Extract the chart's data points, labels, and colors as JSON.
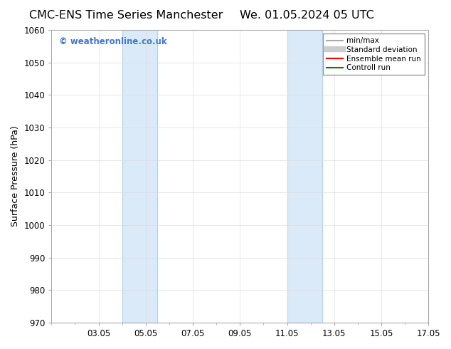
{
  "title_left": "CMC-ENS Time Series Manchester",
  "title_right": "We. 01.05.2024 05 UTC",
  "ylabel": "Surface Pressure (hPa)",
  "ylim": [
    970,
    1060
  ],
  "yticks": [
    970,
    980,
    990,
    1000,
    1010,
    1020,
    1030,
    1040,
    1050,
    1060
  ],
  "xlim": [
    1,
    17
  ],
  "xtick_positions": [
    3,
    5,
    7,
    9,
    11,
    13,
    15,
    17
  ],
  "xtick_labels": [
    "03.05",
    "05.05",
    "07.05",
    "09.05",
    "11.05",
    "13.05",
    "15.05",
    "17.05"
  ],
  "shaded_bands": [
    {
      "x_start": 4.0,
      "x_end": 5.5
    },
    {
      "x_start": 11.0,
      "x_end": 12.5
    }
  ],
  "shaded_color": "#daeaf8",
  "vertical_lines": [
    4.0,
    5.5,
    11.0,
    12.5
  ],
  "vline_color": "#b5d4ea",
  "watermark_text": "© weatheronline.co.uk",
  "watermark_color": "#4477cc",
  "legend_items": [
    {
      "label": "min/max",
      "color": "#aaaaaa",
      "lw": 1.5,
      "style": "solid"
    },
    {
      "label": "Standard deviation",
      "color": "#cccccc",
      "lw": 6,
      "style": "solid"
    },
    {
      "label": "Ensemble mean run",
      "color": "red",
      "lw": 1.5,
      "style": "solid"
    },
    {
      "label": "Controll run",
      "color": "green",
      "lw": 1.5,
      "style": "solid"
    }
  ],
  "background_color": "#ffffff",
  "grid_color": "#dddddd",
  "title_fontsize": 11.5,
  "axis_label_fontsize": 9,
  "tick_fontsize": 8.5
}
